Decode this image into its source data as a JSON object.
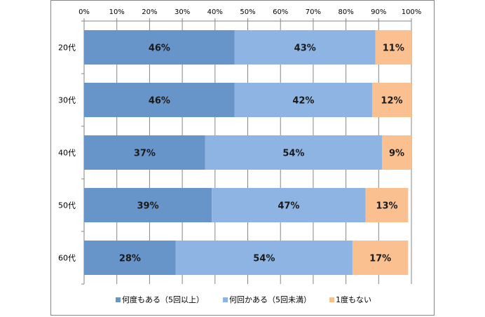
{
  "chart_data": {
    "type": "bar",
    "orientation": "horizontal",
    "stacked": true,
    "percent_stacked": true,
    "title": "",
    "xlabel": "",
    "ylabel": "",
    "xlim": [
      0,
      100
    ],
    "x_ticks": [
      "0%",
      "10%",
      "20%",
      "30%",
      "40%",
      "50%",
      "60%",
      "70%",
      "80%",
      "90%",
      "100%"
    ],
    "x_axis_position": "top",
    "grid": true,
    "legend_position": "bottom",
    "categories": [
      "20代",
      "30代",
      "40代",
      "50代",
      "60代"
    ],
    "series": [
      {
        "name": "何度もある（5回以上）",
        "color": "#6794C9",
        "values": [
          46,
          46,
          37,
          39,
          28
        ],
        "labels": [
          "46%",
          "46%",
          "37%",
          "39%",
          "28%"
        ]
      },
      {
        "name": "何回かある（5回未満）",
        "color": "#8EB4E3",
        "values": [
          43,
          42,
          54,
          47,
          54
        ],
        "labels": [
          "43%",
          "42%",
          "54%",
          "47%",
          "54%"
        ]
      },
      {
        "name": "1度もない",
        "color": "#FAC090",
        "values": [
          11,
          12,
          9,
          13,
          17
        ],
        "labels": [
          "11%",
          "12%",
          "9%",
          "13%",
          "17%"
        ]
      }
    ]
  }
}
